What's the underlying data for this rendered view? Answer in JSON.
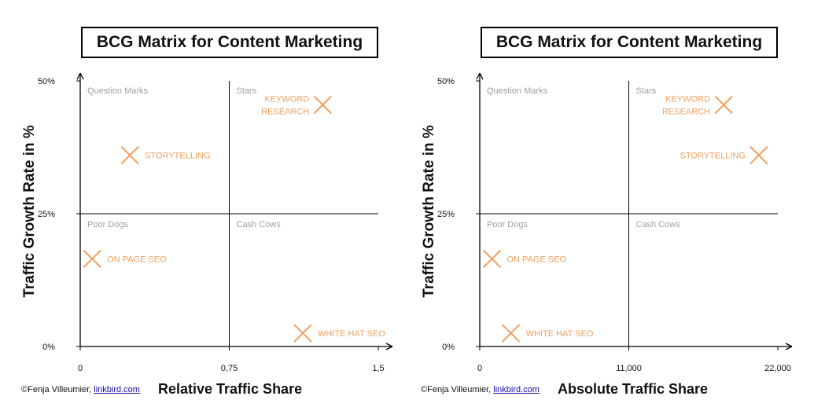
{
  "credit": {
    "prefix": "©Fenja Villeumier, ",
    "link": "linkbird.com"
  },
  "colors": {
    "marker": "#f0a060",
    "quadrant_label": "#a0a0a0",
    "axis": "#000000"
  },
  "chart_data": [
    {
      "type": "scatter",
      "title": "BCG Matrix for Content Marketing",
      "xlabel": "Relative Traffic Share",
      "ylabel": "Traffic Growth Rate in %",
      "xlim": [
        0,
        1.5
      ],
      "ylim": [
        0,
        50
      ],
      "x_ticks": [
        {
          "value": 0,
          "label": "0"
        },
        {
          "value": 0.75,
          "label": "0,75"
        },
        {
          "value": 1.5,
          "label": "1,5"
        }
      ],
      "y_ticks": [
        {
          "value": 0,
          "label": "0%"
        },
        {
          "value": 25,
          "label": "25%"
        },
        {
          "value": 50,
          "label": "50%"
        }
      ],
      "quadrant_split": {
        "x": 0.75,
        "y": 25
      },
      "quadrants": [
        "Question Marks",
        "Stars",
        "Poor Dogs",
        "Cash Cows"
      ],
      "points": [
        {
          "label": "KEYWORD\nRESEARCH",
          "x": 1.22,
          "y": 45.5,
          "label_side": "left"
        },
        {
          "label": "STORYTELLING",
          "x": 0.25,
          "y": 36,
          "label_side": "right"
        },
        {
          "label": "ON PAGE SEO",
          "x": 0.06,
          "y": 16.5,
          "label_side": "right"
        },
        {
          "label": "WHITE HAT SEO",
          "x": 1.12,
          "y": 2.5,
          "label_side": "right"
        }
      ]
    },
    {
      "type": "scatter",
      "title": "BCG Matrix for Content Marketing",
      "xlabel": "Absolute Traffic Share",
      "ylabel": "Traffic Growth Rate in %",
      "xlim": [
        0,
        22000
      ],
      "ylim": [
        0,
        50
      ],
      "x_ticks": [
        {
          "value": 0,
          "label": "0"
        },
        {
          "value": 11000,
          "label": "11,000"
        },
        {
          "value": 22000,
          "label": "22,000"
        }
      ],
      "y_ticks": [
        {
          "value": 0,
          "label": "0%"
        },
        {
          "value": 25,
          "label": "25%"
        },
        {
          "value": 50,
          "label": "50%"
        }
      ],
      "quadrant_split": {
        "x": 11000,
        "y": 25
      },
      "quadrants": [
        "Question Marks",
        "Stars",
        "Poor Dogs",
        "Cash Cows"
      ],
      "points": [
        {
          "label": "KEYWORD\nRESEARCH",
          "x": 18000,
          "y": 45.5,
          "label_side": "left"
        },
        {
          "label": "STORYTELLING",
          "x": 20600,
          "y": 36,
          "label_side": "left"
        },
        {
          "label": "ON PAGE SEO",
          "x": 900,
          "y": 16.5,
          "label_side": "right"
        },
        {
          "label": "WHITE HAT SEO",
          "x": 2300,
          "y": 2.5,
          "label_side": "right"
        }
      ]
    }
  ]
}
